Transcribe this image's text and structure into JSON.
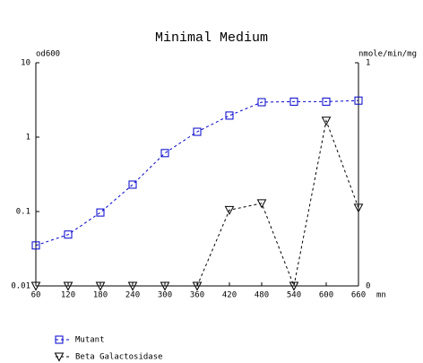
{
  "chart_data": {
    "type": "line",
    "title": "Minimal Medium",
    "ylabel": "od600",
    "y2label": "nmole/min/mg",
    "xlabel": "mn",
    "x": [
      60,
      120,
      180,
      240,
      300,
      360,
      420,
      480,
      540,
      600,
      660
    ],
    "xlim": [
      60,
      660
    ],
    "xticks": [
      60,
      120,
      180,
      240,
      300,
      360,
      420,
      480,
      540,
      600,
      660
    ],
    "ylim": [
      0.01,
      10
    ],
    "yticks": [
      0.01,
      0.1,
      1,
      10
    ],
    "yscale": "log",
    "y2lim": [
      0,
      1
    ],
    "y2ticks": [
      0,
      1
    ],
    "series": [
      {
        "name": "Mutant",
        "color": "#0000cc",
        "marker": "square",
        "values": [
          0.035,
          0.049,
          0.097,
          0.23,
          0.61,
          1.18,
          1.95,
          2.95,
          3.0,
          3.0,
          3.1
        ]
      },
      {
        "name": "Beta Galactosidase",
        "color": "#000000",
        "marker": "triangle-down",
        "axis": "y2",
        "values": [
          0,
          0,
          0,
          0,
          0,
          0,
          0.34,
          0.37,
          0,
          0.74,
          0.35
        ]
      }
    ]
  }
}
